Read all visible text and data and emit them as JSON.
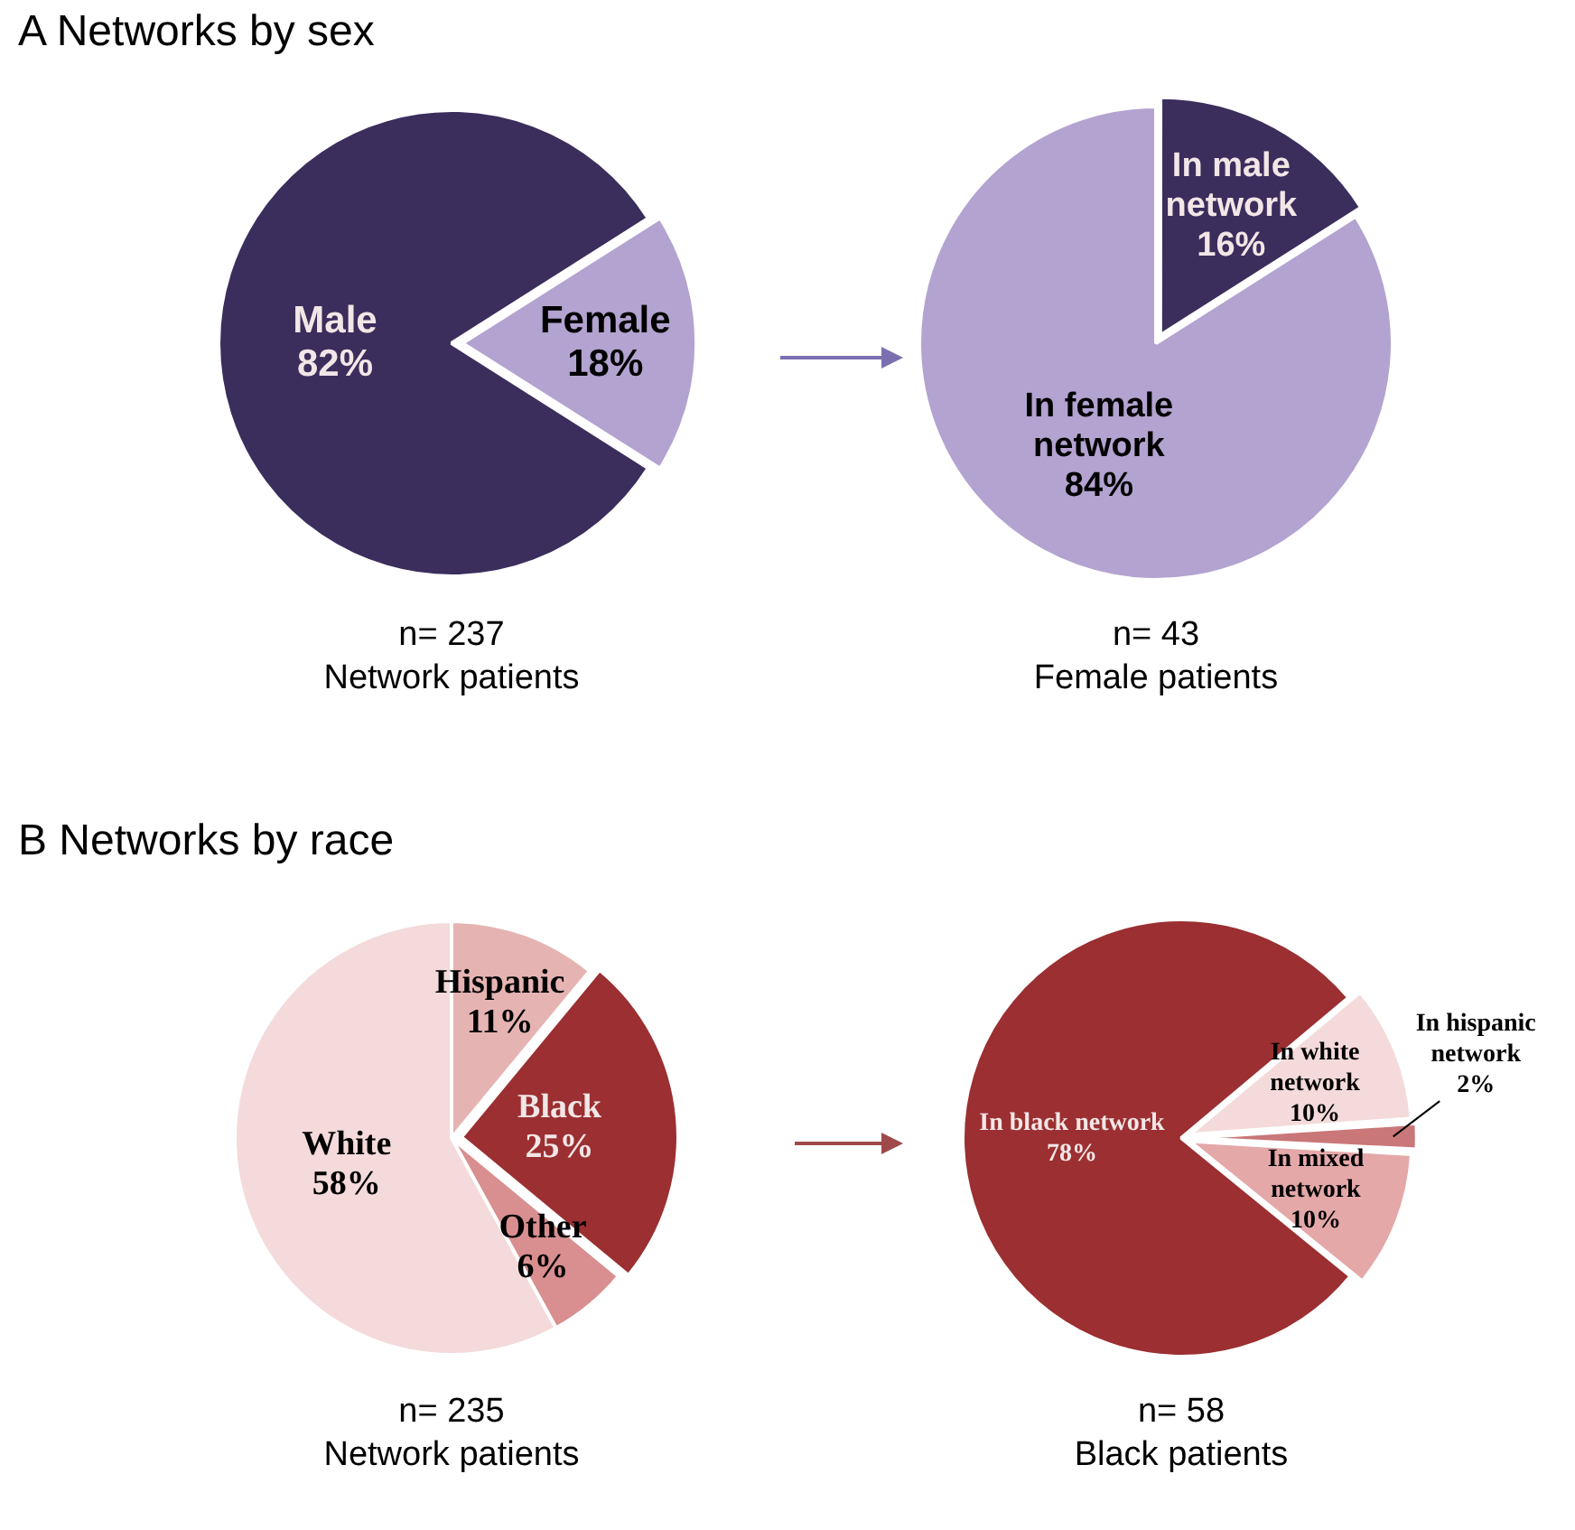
{
  "chart_data": [
    {
      "type": "pie",
      "title": "A Networks by sex",
      "categories": [
        "Male",
        "Female"
      ],
      "values": [
        82,
        18
      ],
      "colors": [
        "#3b2d5c",
        "#b3a3d0"
      ],
      "value_labels": [
        "82%",
        "18%"
      ],
      "legend": false,
      "annotations": [
        "n= 237",
        "Network patients"
      ]
    },
    {
      "type": "pie",
      "categories": [
        "In male network",
        "In female network"
      ],
      "values": [
        16,
        84
      ],
      "colors": [
        "#3b2d5c",
        "#b3a3d0"
      ],
      "value_labels": [
        "16%",
        "84%"
      ],
      "legend": false,
      "annotations": [
        "n= 43",
        "Female patients"
      ]
    },
    {
      "type": "pie",
      "title": "B Networks by race",
      "categories": [
        "Hispanic",
        "Black",
        "Other",
        "White"
      ],
      "values": [
        11,
        25,
        6,
        58
      ],
      "colors": [
        "#e6b3b3",
        "#9b2f31",
        "#d98e8f",
        "#f4dada"
      ],
      "value_labels": [
        "11%",
        "25%",
        "6%",
        "58%"
      ],
      "legend": false,
      "annotations": [
        "n= 235",
        "Network patients"
      ]
    },
    {
      "type": "pie",
      "categories": [
        "In white network",
        "In hispanic network",
        "In mixed network",
        "In black network"
      ],
      "values": [
        10,
        2,
        10,
        78
      ],
      "colors": [
        "#f4dada",
        "#c97778",
        "#e4a8a9",
        "#9b2f31"
      ],
      "value_labels": [
        "10%",
        "2%",
        "10%",
        "78%"
      ],
      "legend": false,
      "annotations": [
        "n= 58",
        "Black patients"
      ]
    }
  ]
}
